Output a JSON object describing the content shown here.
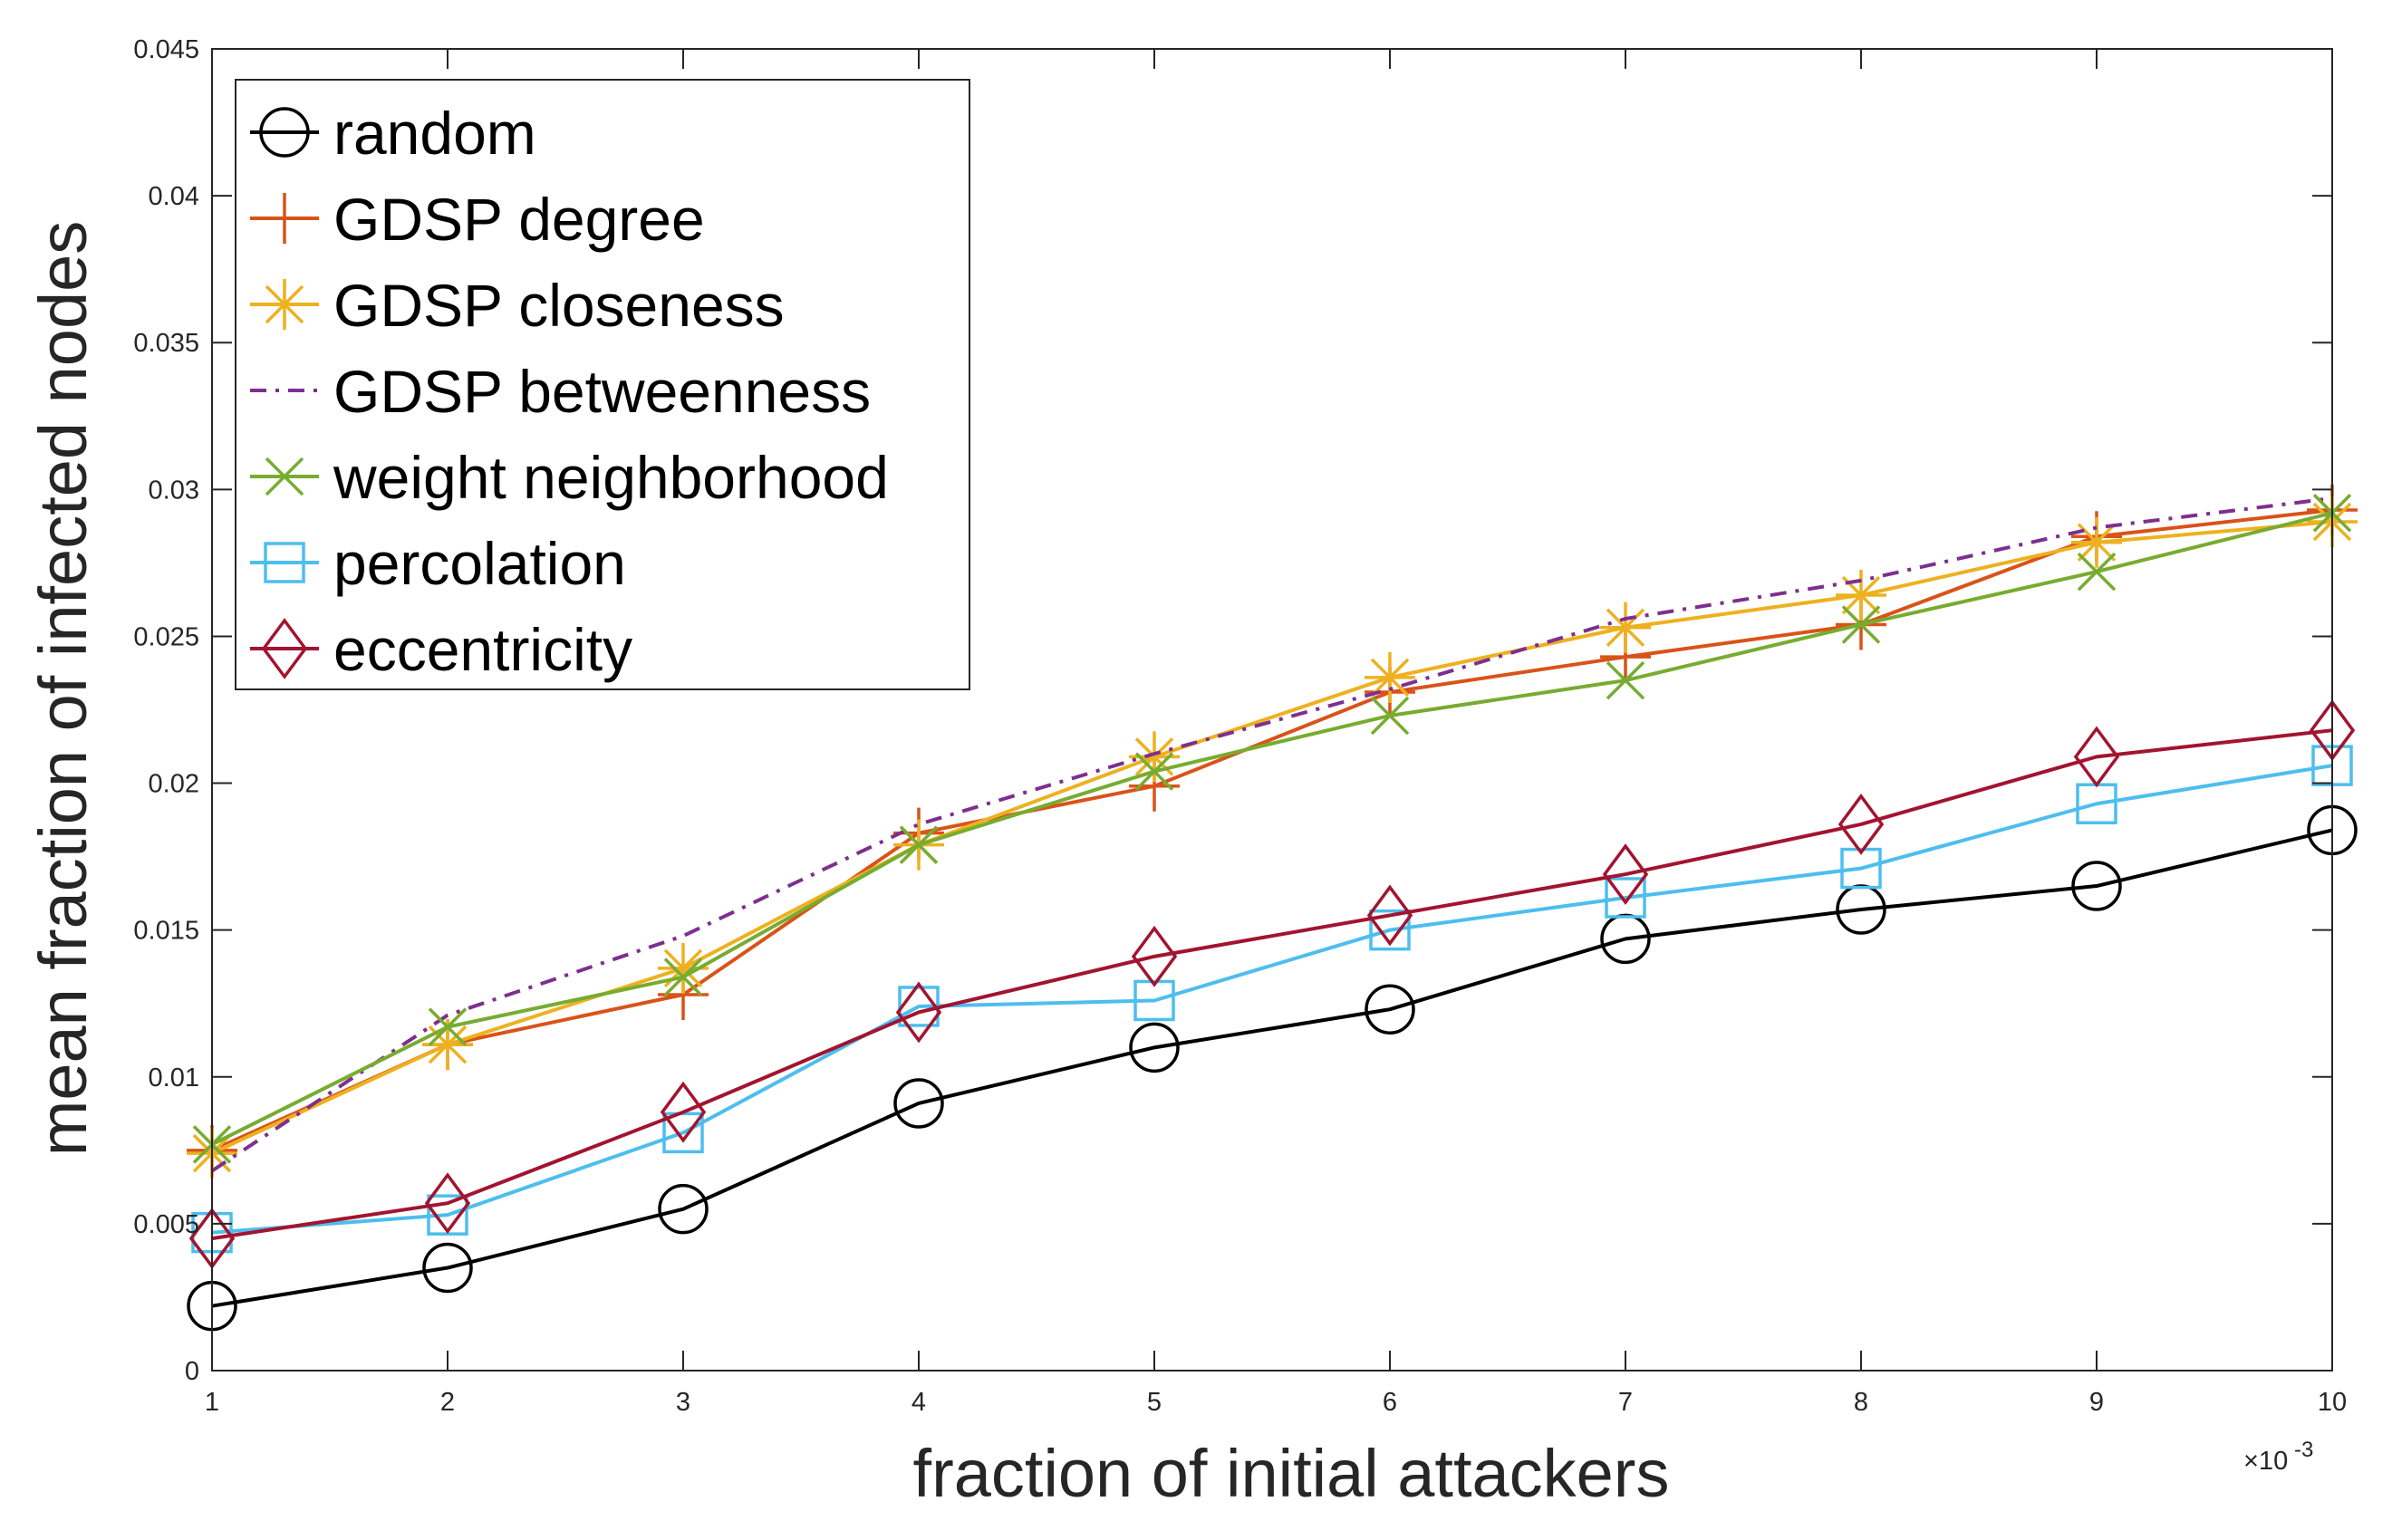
{
  "chart_data": {
    "type": "line",
    "xlabel": "fraction of initial attackers",
    "ylabel": "mean fraction of infected nodes",
    "x_exponent_label": "×10",
    "x_exponent_power": "-3",
    "x": [
      1,
      2,
      3,
      4,
      5,
      6,
      7,
      8,
      9,
      10
    ],
    "x_tick_labels": [
      "1",
      "2",
      "3",
      "4",
      "5",
      "6",
      "7",
      "8",
      "9",
      "10"
    ],
    "xlim": [
      1,
      10
    ],
    "ylim": [
      0,
      0.045
    ],
    "y_ticks": [
      0,
      0.005,
      0.01,
      0.015,
      0.02,
      0.025,
      0.03,
      0.035,
      0.04,
      0.045
    ],
    "y_tick_labels": [
      "0",
      "0.005",
      "0.01",
      "0.015",
      "0.02",
      "0.025",
      "0.03",
      "0.035",
      "0.04",
      "0.045"
    ],
    "grid": false,
    "legend_position": "top-left",
    "series": [
      {
        "name": "random",
        "color": "#000000",
        "marker": "circle",
        "dash": "solid",
        "values": [
          0.0022,
          0.0035,
          0.0055,
          0.0091,
          0.011,
          0.0123,
          0.0147,
          0.0157,
          0.0165,
          0.0184
        ]
      },
      {
        "name": "GDSP degree",
        "color": "#D95319",
        "marker": "plus",
        "dash": "solid",
        "values": [
          0.0075,
          0.0111,
          0.0128,
          0.0183,
          0.0199,
          0.0231,
          0.0243,
          0.0254,
          0.0284,
          0.0293
        ]
      },
      {
        "name": "GDSP closeness",
        "color": "#EDB120",
        "marker": "asterisk",
        "dash": "solid",
        "values": [
          0.0074,
          0.0111,
          0.0137,
          0.0179,
          0.0209,
          0.0236,
          0.0253,
          0.0264,
          0.0282,
          0.0289
        ]
      },
      {
        "name": "GDSP betweenness",
        "color": "#7E2F8E",
        "marker": "none",
        "dash": "dashdot",
        "values": [
          0.0068,
          0.0121,
          0.0148,
          0.0186,
          0.021,
          0.0232,
          0.0256,
          0.0269,
          0.0287,
          0.0297
        ]
      },
      {
        "name": "weight neighborhood",
        "color": "#77AC30",
        "marker": "x",
        "dash": "solid",
        "values": [
          0.0077,
          0.0117,
          0.0134,
          0.0179,
          0.0204,
          0.0223,
          0.0235,
          0.0254,
          0.0272,
          0.0292
        ]
      },
      {
        "name": "percolation",
        "color": "#4DBEEE",
        "marker": "square",
        "dash": "solid",
        "values": [
          0.0047,
          0.0053,
          0.0081,
          0.0124,
          0.0126,
          0.015,
          0.0161,
          0.0171,
          0.0193,
          0.0206
        ]
      },
      {
        "name": "eccentricity",
        "color": "#A2142F",
        "marker": "diamond",
        "dash": "solid",
        "values": [
          0.0045,
          0.0057,
          0.0088,
          0.0122,
          0.0141,
          0.0155,
          0.0169,
          0.0186,
          0.0209,
          0.0218
        ]
      }
    ]
  }
}
